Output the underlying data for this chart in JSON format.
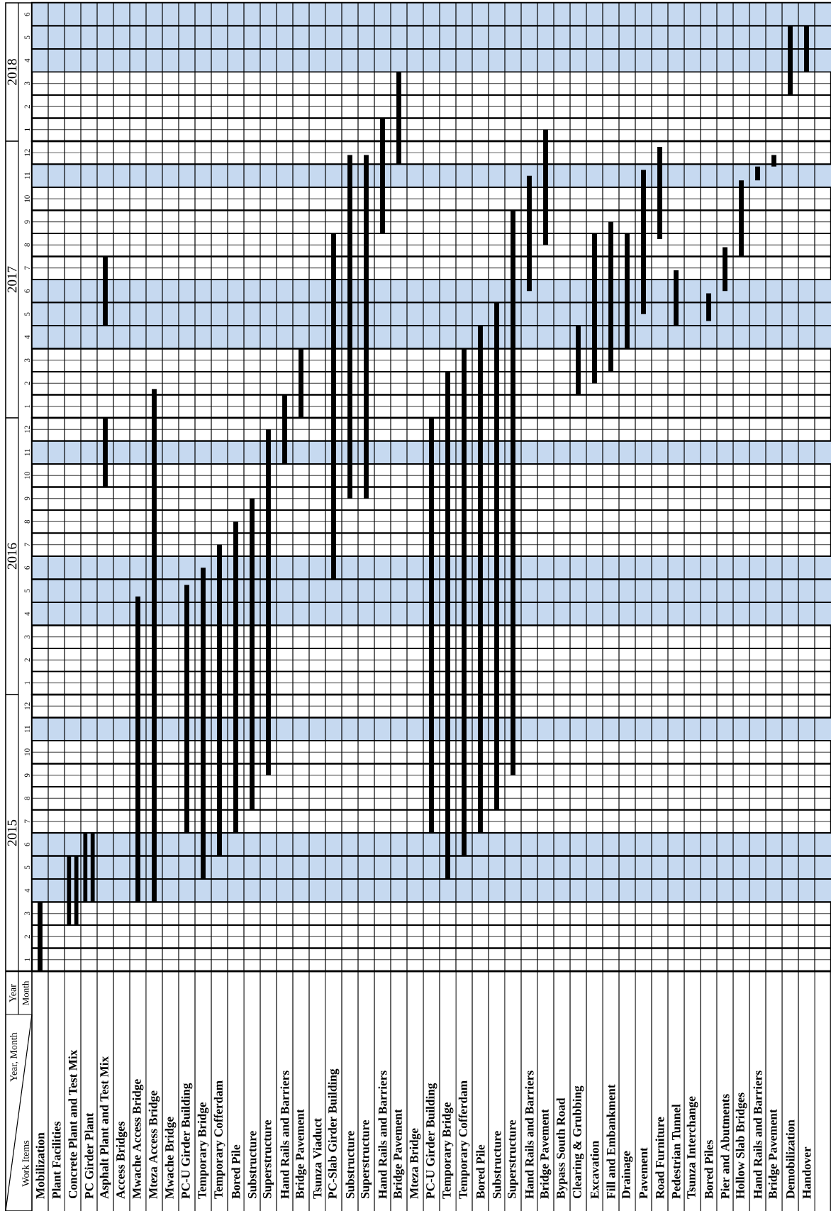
{
  "chart_data": [
    {
      "type": "bar",
      "ylabel": "2018",
      "tick_labels": "y",
      "grid": true,
      "categories": [
        null,
        null,
        null,
        null,
        null,
        null,
        null,
        null,
        null,
        null,
        null,
        null,
        null,
        null,
        null,
        null,
        null,
        null,
        null,
        null,
        null,
        null,
        null,
        null,
        null,
        null,
        null,
        null,
        null,
        null,
        null,
        null,
        null,
        null,
        null,
        null,
        null,
        null,
        null,
        null,
        null,
        null,
        null,
        null,
        null,
        null,
        null,
        null,
        null
      ],
      "series": [
        {
          "color": "#000000",
          "base": [
            null,
            null,
            null,
            null,
            null,
            null,
            null,
            null,
            null,
            null,
            null,
            null,
            null,
            null,
            null,
            null,
            null,
            null,
            null,
            null,
            null,
            0.5,
            0.5,
            null,
            null,
            null,
            null,
            null,
            null,
            null,
            null,
            0.5,
            null,
            null,
            null,
            null,
            null,
            null,
            null,
            null,
            null,
            null,
            null,
            null,
            null,
            null,
            2.5,
            3.5,
            null
          ],
          "values": [
            null,
            null,
            null,
            null,
            null,
            null,
            null,
            null,
            null,
            null,
            null,
            null,
            null,
            null,
            null,
            null,
            null,
            null,
            null,
            null,
            null,
            1,
            3,
            null,
            null,
            null,
            null,
            null,
            null,
            null,
            null,
            0.5,
            null,
            null,
            null,
            null,
            null,
            null,
            null,
            null,
            null,
            null,
            null,
            null,
            null,
            null,
            3,
            2,
            null
          ]
        }
      ],
      "ylim": [
        0.5,
        6.5
      ],
      "yticks": [
        1,
        2,
        3,
        4,
        5,
        6
      ],
      "bands": [
        {
          "axis": "y",
          "from": 3.5,
          "to": 6.5,
          "color": "#c6d9f0"
        }
      ]
    },
    {
      "type": "bar",
      "ylabel": "2017",
      "tick_labels": "y",
      "grid": true,
      "categories": [
        null,
        null,
        null,
        null,
        null,
        null,
        null,
        null,
        null,
        null,
        null,
        null,
        null,
        null,
        null,
        null,
        null,
        null,
        null,
        null,
        null,
        null,
        null,
        null,
        null,
        null,
        null,
        null,
        null,
        null,
        null,
        null,
        null,
        null,
        null,
        null,
        null,
        null,
        null,
        null,
        null,
        null,
        null,
        null,
        null,
        null,
        null,
        null,
        null
      ],
      "series": [
        {
          "color": "#000000",
          "base": [
            null,
            null,
            null,
            null,
            null,
            null,
            null,
            0.5,
            null,
            null,
            null,
            null,
            null,
            null,
            null,
            0.5,
            0.5,
            null,
            0.5,
            0.5,
            0.5,
            8.5,
            11.5,
            null,
            null,
            0.5,
            0.5,
            0.5,
            0.5,
            0.5,
            6,
            8,
            null,
            1.5,
            2,
            2.5,
            3.5,
            5,
            8.25,
            4.5,
            null,
            4.7,
            6,
            7.5,
            10.8,
            11.4,
            null,
            null,
            null
          ],
          "values": [
            null,
            null,
            null,
            null,
            null,
            null,
            null,
            1.25,
            null,
            null,
            null,
            null,
            null,
            null,
            null,
            1,
            3,
            null,
            8,
            11.4,
            11.4,
            4,
            1,
            null,
            null,
            2,
            3,
            4,
            5,
            9,
            5,
            4.5,
            null,
            3,
            6.5,
            6.5,
            5,
            6.25,
            4,
            2.4,
            null,
            1.2,
            1.9,
            3.3,
            0.6,
            0.5,
            null,
            null,
            null
          ]
        },
        {
          "color": "#000000",
          "base": [
            null,
            null,
            null,
            null,
            4.5,
            null,
            null,
            null,
            null,
            null,
            null,
            null,
            null,
            null,
            null,
            null,
            null,
            null,
            null,
            null,
            null,
            null,
            null,
            null,
            null,
            null,
            null,
            null,
            null,
            null,
            null,
            null,
            null,
            null,
            null,
            null,
            null,
            null,
            null,
            null,
            null,
            null,
            null,
            null,
            null,
            null,
            null,
            null,
            null
          ],
          "values": [
            null,
            null,
            null,
            null,
            3,
            null,
            null,
            null,
            null,
            null,
            null,
            null,
            null,
            null,
            null,
            null,
            null,
            null,
            null,
            null,
            null,
            null,
            null,
            null,
            null,
            null,
            null,
            null,
            null,
            null,
            null,
            null,
            null,
            null,
            null,
            null,
            null,
            null,
            null,
            null,
            null,
            null,
            null,
            null,
            null,
            null,
            null,
            null,
            null
          ]
        }
      ],
      "ylim": [
        0.5,
        12.5
      ],
      "yticks": [
        1,
        2,
        3,
        4,
        5,
        6,
        7,
        8,
        9,
        10,
        11,
        12
      ],
      "bands": [
        {
          "axis": "y",
          "from": 3.5,
          "to": 6.5,
          "color": "#c6d9f0"
        },
        {
          "axis": "y",
          "from": 10.5,
          "to": 11.5,
          "color": "#c6d9f0"
        }
      ]
    },
    {
      "type": "bar",
      "ylabel": "2016",
      "tick_labels": "y",
      "grid": true,
      "categories": [
        null,
        null,
        null,
        null,
        null,
        null,
        null,
        null,
        null,
        null,
        null,
        null,
        null,
        null,
        null,
        null,
        null,
        null,
        null,
        null,
        null,
        null,
        null,
        null,
        null,
        null,
        null,
        null,
        null,
        null,
        null,
        null,
        null,
        null,
        null,
        null,
        null,
        null,
        null,
        null,
        null,
        null,
        null,
        null,
        null,
        null,
        null,
        null,
        null
      ],
      "series": [
        {
          "color": "#000000",
          "base": [
            null,
            null,
            null,
            null,
            9.5,
            null,
            0.5,
            0.5,
            null,
            0.5,
            0.5,
            0.5,
            0.5,
            0.5,
            0.5,
            10.5,
            null,
            null,
            5.5,
            9,
            9,
            null,
            null,
            null,
            0.5,
            0.5,
            0.5,
            0.5,
            0.5,
            0.5,
            null,
            null,
            null,
            null,
            null,
            null,
            null,
            null,
            null,
            null,
            null,
            null,
            null,
            null,
            null,
            null,
            null,
            null,
            null
          ],
          "values": [
            null,
            null,
            null,
            null,
            3,
            null,
            4.25,
            12,
            null,
            4.75,
            5.5,
            6.5,
            7.5,
            8.5,
            11.5,
            2,
            null,
            null,
            7,
            3.5,
            3.5,
            null,
            null,
            null,
            12,
            12,
            12,
            12,
            12,
            12,
            null,
            null,
            null,
            null,
            null,
            null,
            null,
            null,
            null,
            null,
            null,
            null,
            null,
            null,
            null,
            null,
            null,
            null,
            null
          ]
        }
      ],
      "ylim": [
        0.5,
        12.5
      ],
      "yticks": [
        1,
        2,
        3,
        4,
        5,
        6,
        7,
        8,
        9,
        10,
        11,
        12
      ],
      "bands": [
        {
          "axis": "y",
          "from": 3.5,
          "to": 6.5,
          "color": "#c6d9f0"
        },
        {
          "axis": "y",
          "from": 10.5,
          "to": 11.5,
          "color": "#c6d9f0"
        }
      ]
    },
    {
      "type": "bar",
      "ylabel": "2015",
      "grid": true,
      "categories": [
        "Mobilization",
        "Plant Facilities",
        "Concrete Plant and Test Mix",
        "PC Girder Plant",
        "Asphalt Plant and Test Mix",
        "Access Bridges",
        "Mwache Access Bridge",
        "Mteza Access Bridge",
        "Mwache Bridge",
        "PC-U Girder Building",
        "Temporary Bridge",
        "Temporary Cofferdam",
        "Bored Pile",
        "Substructure",
        "Superstructure",
        "Hand Rails and Barriers",
        "Bridge Pavement",
        "Tsunza Viaduct",
        "PC-Slab Girder Building",
        "Substructure",
        "Superstructure",
        "Hand Rails and Barriers",
        "Bridge Pavement",
        "Mteza Bridge",
        "PC-U Girder Building",
        "Temporary Bridge",
        "Temporary Cofferdam",
        "Bored Pile",
        "Substructure",
        "Superstructure",
        "Hand Rails and Barriers",
        "Bridge Pavement",
        "Bypass South Road",
        "Clearing & Grubbing",
        "Excavation",
        "Fill and Embankment",
        "Drainage",
        "Pavement",
        "Road Furniture",
        "Pedestrian Tunnel",
        "Tsunza Interchange",
        "Bored Piles",
        "Pier and Abutments",
        "Hollow Slab Bridges",
        "Hand Rails and Barriers",
        "Bridge Pavement",
        "Demobilization",
        "Handover",
        null
      ],
      "series": [
        {
          "color": "#000000",
          "base": [
            0.5,
            null,
            2.5,
            3.5,
            null,
            null,
            3.5,
            3.5,
            null,
            6.5,
            4.5,
            5.5,
            6.5,
            7.5,
            9,
            null,
            null,
            null,
            null,
            null,
            null,
            null,
            null,
            null,
            6.5,
            4.5,
            5.5,
            6.5,
            7.5,
            9,
            null,
            null,
            null,
            null,
            null,
            null,
            null,
            null,
            null,
            null,
            null,
            null,
            null,
            null,
            null,
            null,
            null,
            null,
            null
          ],
          "values": [
            3,
            null,
            3,
            3,
            null,
            null,
            9,
            9,
            null,
            6,
            8,
            7,
            6,
            5,
            3.5,
            null,
            null,
            null,
            null,
            null,
            null,
            null,
            null,
            null,
            6,
            8,
            7,
            6,
            5,
            3.5,
            null,
            null,
            null,
            null,
            null,
            null,
            null,
            null,
            null,
            null,
            null,
            null,
            null,
            null,
            null,
            null,
            null,
            null,
            null
          ]
        },
        {
          "color": "#000000",
          "base": [
            null,
            null,
            2.5,
            3.5,
            null,
            null,
            null,
            null,
            null,
            null,
            null,
            null,
            null,
            null,
            null,
            null,
            null,
            null,
            null,
            null,
            null,
            null,
            null,
            null,
            null,
            null,
            null,
            null,
            null,
            null,
            null,
            null,
            null,
            null,
            null,
            null,
            null,
            null,
            null,
            null,
            null,
            null,
            null,
            null,
            null,
            null,
            null,
            null,
            null
          ],
          "values": [
            null,
            null,
            3,
            3,
            null,
            null,
            null,
            null,
            null,
            null,
            null,
            null,
            null,
            null,
            null,
            null,
            null,
            null,
            null,
            null,
            null,
            null,
            null,
            null,
            null,
            null,
            null,
            null,
            null,
            null,
            null,
            null,
            null,
            null,
            null,
            null,
            null,
            null,
            null,
            null,
            null,
            null,
            null,
            null,
            null,
            null,
            null,
            null,
            null
          ]
        }
      ],
      "ylim": [
        0.5,
        12.5
      ],
      "yticks": [
        1,
        2,
        3,
        4,
        5,
        6,
        7,
        8,
        9,
        10,
        11,
        12
      ],
      "bands": [
        {
          "axis": "y",
          "from": 3.5,
          "to": 6.5,
          "color": "#c6d9f0"
        },
        {
          "axis": "y",
          "from": 10.5,
          "to": 11.5,
          "color": "#c6d9f0"
        }
      ],
      "annotations": [
        "Year, Month",
        "Work Items",
        "Year",
        "Month"
      ]
    }
  ]
}
